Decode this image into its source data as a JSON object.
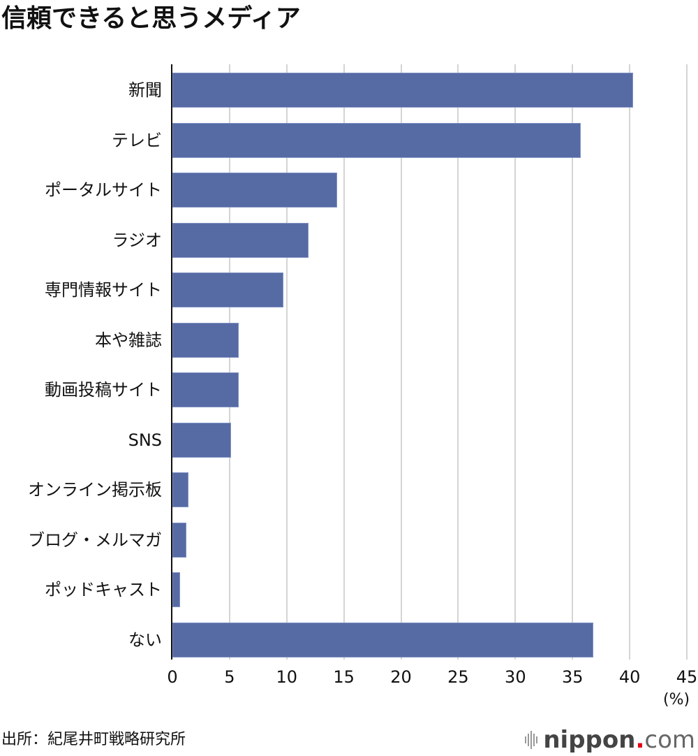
{
  "title": "信頼できると思うメディア",
  "source": "出所：紀尾井町戦略研究所",
  "logo": {
    "brand": "nippon",
    "dot": ".",
    "tld": "com"
  },
  "colors": {
    "bar": "#566aa4",
    "grid": "#d4d4d4",
    "axis": "#111111"
  },
  "chart_data": {
    "type": "bar",
    "orientation": "horizontal",
    "title": "信頼できると思うメディア",
    "categories": [
      "新聞",
      "テレビ",
      "ポータルサイト",
      "ラジオ",
      "専門情報サイト",
      "本や雑誌",
      "動画投稿サイト",
      "SNS",
      "オンライン掲示板",
      "ブログ・メルマガ",
      "ポッドキャスト",
      "ない"
    ],
    "values": [
      40.3,
      35.7,
      14.4,
      11.9,
      9.7,
      5.8,
      5.8,
      5.1,
      1.4,
      1.2,
      0.7,
      36.8
    ],
    "xlabel": "(%)",
    "ylabel": "",
    "xlim": [
      0,
      45
    ],
    "xticks": [
      "0",
      "5",
      "10",
      "15",
      "20",
      "25",
      "30",
      "35",
      "40",
      "45"
    ],
    "grid": true,
    "legend": null
  }
}
